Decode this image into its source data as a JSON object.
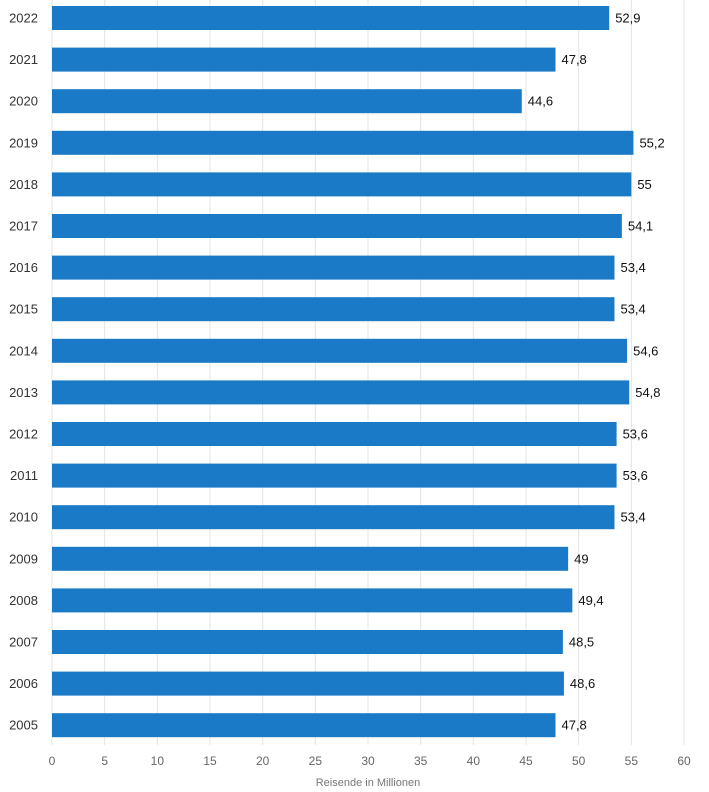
{
  "chart_data": {
    "type": "bar",
    "orientation": "horizontal",
    "categories": [
      "2022",
      "2021",
      "2020",
      "2019",
      "2018",
      "2017",
      "2016",
      "2015",
      "2014",
      "2013",
      "2012",
      "2011",
      "2010",
      "2009",
      "2008",
      "2007",
      "2006",
      "2005"
    ],
    "values": [
      52.9,
      47.8,
      44.6,
      55.2,
      55,
      54.1,
      53.4,
      53.4,
      54.6,
      54.8,
      53.6,
      53.6,
      53.4,
      49,
      49.4,
      48.5,
      48.6,
      47.8
    ],
    "value_labels": [
      "52,9",
      "47,8",
      "44,6",
      "55,2",
      "55",
      "54,1",
      "53,4",
      "53,4",
      "54,6",
      "54,8",
      "53,6",
      "53,6",
      "53,4",
      "49",
      "49,4",
      "48,5",
      "48,6",
      "47,8"
    ],
    "xlabel": "Reisende in Millionen",
    "ylabel": "",
    "xlim": [
      0,
      60
    ],
    "xticks": [
      0,
      5,
      10,
      15,
      20,
      25,
      30,
      35,
      40,
      45,
      50,
      55,
      60
    ],
    "grid": true,
    "colors": {
      "bar": "#1a7ac7"
    }
  }
}
